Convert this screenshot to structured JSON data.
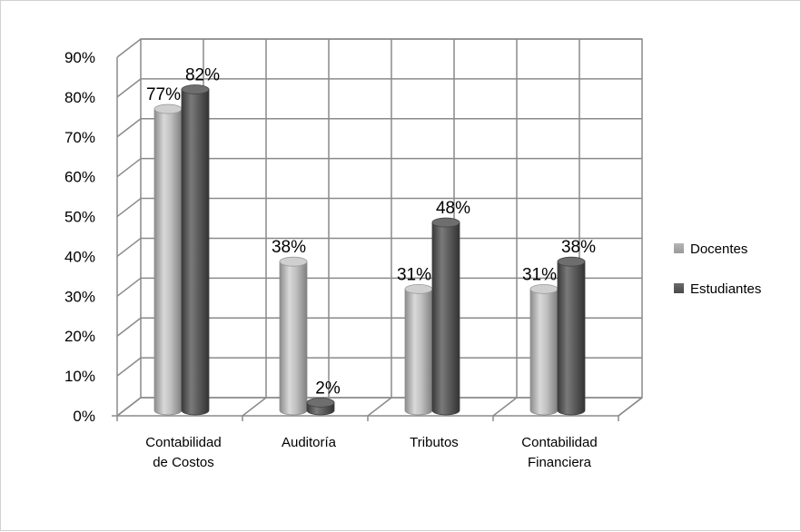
{
  "chart_data": {
    "type": "bar",
    "title": "",
    "xlabel": "",
    "ylabel": "",
    "categories": [
      [
        "Contabilidad",
        "de Costos"
      ],
      [
        "Auditoría"
      ],
      [
        "Tributos"
      ],
      [
        "Contabilidad",
        "Financiera"
      ]
    ],
    "series": [
      {
        "name": "Docentes",
        "values": [
          77,
          38,
          31,
          31
        ],
        "labels": [
          "77%",
          "38%",
          "31%",
          "31%"
        ],
        "color": "#a6a6a6"
      },
      {
        "name": "Estudiantes",
        "values": [
          82,
          2,
          48,
          38
        ],
        "labels": [
          "82%",
          "2%",
          "48%",
          "38%"
        ],
        "color": "#595959"
      }
    ],
    "ylim": [
      0,
      90
    ],
    "yticks": [
      "0%",
      "10%",
      "20%",
      "30%",
      "40%",
      "50%",
      "60%",
      "70%",
      "80%",
      "90%"
    ],
    "grid": true,
    "legend_position": "right",
    "style": "3d-cylinder"
  }
}
